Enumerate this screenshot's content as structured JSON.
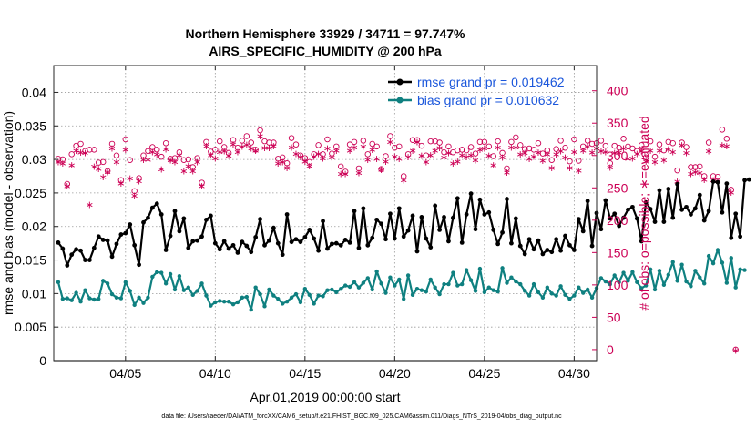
{
  "chart_data": {
    "type": "line",
    "title": "Northern Hemisphere 33929 / 34711 = 97.747%",
    "subtitle": "AIRS_SPECIFIC_HUMIDITY @ 200 hPa",
    "xlabel": "Apr.01,2019 00:00:00 start",
    "ylabel_left": "rmse and bias (model - observation)",
    "ylabel_right": "# of obs: o=possible; ∗=evaluated",
    "footnote": "data file: /Users/raeder/DAI/ATM_forcXX/CAM6_setup/f.e21.FHIST_BGC.f09_025.CAM6assim.011/Diags_NTrS_2019-04/obs_diag_output.nc",
    "xlim": [
      1.0,
      31.25
    ],
    "ylim_left": [
      0,
      0.044
    ],
    "ylim_right": [
      -17,
      439
    ],
    "x_ticks": [
      5,
      10,
      15,
      20,
      25,
      30
    ],
    "x_tick_labels": [
      "04/05",
      "04/10",
      "04/15",
      "04/20",
      "04/25",
      "04/30"
    ],
    "y_left_ticks": [
      0,
      0.005,
      0.01,
      0.015,
      0.02,
      0.025,
      0.03,
      0.035,
      0.04
    ],
    "y_left_tick_labels": [
      "0",
      "0.005",
      "0.01",
      "0.015",
      "0.02",
      "0.025",
      "0.03",
      "0.035",
      "0.04"
    ],
    "y_right_ticks": [
      0,
      50,
      100,
      150,
      200,
      250,
      300,
      350,
      400
    ],
    "y_right_tick_labels": [
      "0",
      "50",
      "100",
      "150",
      "200",
      "250",
      "300",
      "350",
      "400"
    ],
    "legend": [
      "rmse grand pr = 0.019462",
      "bias grand pr = 0.010632"
    ],
    "x_start": 1.25,
    "x_step": 0.25,
    "series": [
      {
        "name": "rmse",
        "color": "#000000",
        "axis": "left",
        "values": [
          0.0176,
          0.0167,
          0.0142,
          0.0158,
          0.0166,
          0.0164,
          0.015,
          0.015,
          0.0168,
          0.0185,
          0.018,
          0.0179,
          0.0155,
          0.0174,
          0.0188,
          0.019,
          0.0203,
          0.0172,
          0.0143,
          0.0206,
          0.0213,
          0.0228,
          0.0234,
          0.0218,
          0.0165,
          0.0186,
          0.0223,
          0.0193,
          0.0212,
          0.0168,
          0.0178,
          0.0179,
          0.0185,
          0.021,
          0.0216,
          0.0175,
          0.0166,
          0.0178,
          0.0167,
          0.0172,
          0.0161,
          0.0177,
          0.0171,
          0.0162,
          0.0184,
          0.0211,
          0.0172,
          0.0179,
          0.0198,
          0.0175,
          0.0158,
          0.0218,
          0.0177,
          0.0181,
          0.0177,
          0.0184,
          0.0195,
          0.0182,
          0.0164,
          0.0208,
          0.0167,
          0.0174,
          0.0175,
          0.0172,
          0.018,
          0.0176,
          0.0223,
          0.0168,
          0.0227,
          0.0172,
          0.0183,
          0.021,
          0.0204,
          0.0181,
          0.0219,
          0.0182,
          0.0227,
          0.0185,
          0.0194,
          0.0216,
          0.0163,
          0.0214,
          0.0182,
          0.0169,
          0.0231,
          0.0195,
          0.0214,
          0.0178,
          0.0213,
          0.0242,
          0.0176,
          0.0218,
          0.0249,
          0.0196,
          0.024,
          0.0218,
          0.0221,
          0.0195,
          0.0174,
          0.0191,
          0.0241,
          0.0175,
          0.0212,
          0.0171,
          0.0159,
          0.0181,
          0.0166,
          0.0179,
          0.0159,
          0.0165,
          0.0162,
          0.0181,
          0.0164,
          0.0186,
          0.0172,
          0.0165,
          0.0211,
          0.0193,
          0.0238,
          0.0171,
          0.022,
          0.0196,
          0.0239,
          0.0212,
          0.0219,
          0.0201,
          0.0213,
          0.0225,
          0.0229,
          0.0212,
          0.0178,
          0.0236,
          0.0226,
          0.0207,
          0.0254,
          0.0207,
          0.0256,
          0.0213,
          0.0263,
          0.0225,
          0.0229,
          0.0218,
          0.0227,
          0.0247,
          0.0209,
          0.0223,
          0.0267,
          0.0266,
          0.0221,
          0.0264,
          0.0183,
          0.0219,
          0.0185,
          0.0269,
          0.027
        ]
      },
      {
        "name": "bias",
        "color": "#0f8080",
        "axis": "left",
        "values": [
          0.0117,
          0.0092,
          0.0093,
          0.009,
          0.0101,
          0.0088,
          0.0105,
          0.0093,
          0.0091,
          0.0092,
          0.0119,
          0.0115,
          0.0099,
          0.0094,
          0.0093,
          0.0117,
          0.0104,
          0.0083,
          0.0094,
          0.0086,
          0.0094,
          0.0125,
          0.0132,
          0.0131,
          0.0115,
          0.0129,
          0.0106,
          0.0126,
          0.0105,
          0.0109,
          0.0098,
          0.0104,
          0.0115,
          0.0097,
          0.0082,
          0.0087,
          0.0089,
          0.0088,
          0.0088,
          0.0084,
          0.0087,
          0.0094,
          0.0095,
          0.0076,
          0.0109,
          0.0099,
          0.0081,
          0.0106,
          0.0097,
          0.0092,
          0.0085,
          0.0088,
          0.0094,
          0.0099,
          0.0087,
          0.0107,
          0.0098,
          0.0085,
          0.0097,
          0.0096,
          0.0105,
          0.0106,
          0.0102,
          0.0107,
          0.0112,
          0.011,
          0.0117,
          0.0109,
          0.0116,
          0.0123,
          0.0106,
          0.0133,
          0.0115,
          0.0101,
          0.0124,
          0.0112,
          0.0121,
          0.0092,
          0.0127,
          0.0098,
          0.0107,
          0.0105,
          0.0103,
          0.0121,
          0.0109,
          0.0099,
          0.0114,
          0.0114,
          0.0131,
          0.0112,
          0.0114,
          0.0135,
          0.012,
          0.0104,
          0.0137,
          0.0102,
          0.0109,
          0.0105,
          0.0103,
          0.0138,
          0.0116,
          0.0124,
          0.0118,
          0.0114,
          0.0104,
          0.0097,
          0.0114,
          0.0102,
          0.0094,
          0.0109,
          0.01,
          0.0097,
          0.0111,
          0.0098,
          0.0092,
          0.0097,
          0.0109,
          0.0101,
          0.0106,
          0.0094,
          0.0108,
          0.0123,
          0.0118,
          0.0114,
          0.0127,
          0.0117,
          0.0131,
          0.0119,
          0.0132,
          0.0117,
          0.0108,
          0.0112,
          0.0136,
          0.0106,
          0.0134,
          0.0113,
          0.0128,
          0.0147,
          0.0119,
          0.0143,
          0.0118,
          0.0111,
          0.0134,
          0.0124,
          0.0115,
          0.0156,
          0.0145,
          0.0165,
          0.0146,
          0.0116,
          0.0153,
          0.0109,
          0.0136,
          0.0135
        ]
      },
      {
        "name": "possible",
        "color": "#cc0055",
        "axis": "right",
        "marker": "o",
        "values": [
          295,
          294,
          256,
          302,
          315,
          318,
          307,
          309,
          309,
          289,
          290,
          276,
          318,
          300,
          262,
          325,
          293,
          245,
          265,
          300,
          307,
          313,
          309,
          298,
          319,
          295,
          296,
          305,
          293,
          294,
          282,
          296,
          258,
          321,
          306,
          309,
          322,
          313,
          304,
          324,
          312,
          323,
          330,
          320,
          309,
          339,
          322,
          320,
          320,
          295,
          297,
          288,
          327,
          317,
          300,
          296,
          290,
          302,
          316,
          302,
          325,
          303,
          314,
          283,
          275,
          317,
          321,
          280,
          323,
          302,
          318,
          314,
          279,
          299,
          330,
          312,
          314,
          268,
          302,
          324,
          324,
          315,
          300,
          322,
          322,
          320,
          305,
          314,
          305,
          308,
          309,
          308,
          313,
          303,
          321,
          321,
          314,
          299,
          322,
          304,
          280,
          321,
          328,
          316,
          310,
          311,
          309,
          319,
          303,
          308,
          293,
          310,
          323,
          312,
          291,
          325,
          292,
          314,
          323,
          318,
          319,
          323,
          315,
          288,
          315,
          312,
          326,
          314,
          311,
          307,
          316,
          297,
          322,
          298,
          317,
          308,
          321,
          319,
          277,
          320,
          313,
          282,
          282,
          283,
          268,
          320,
          268,
          267,
          340,
          326,
          247,
          0
        ]
      },
      {
        "name": "evaluated",
        "color": "#cc0055",
        "axis": "right",
        "marker": "*",
        "values": [
          291,
          289,
          254,
          286,
          309,
          306,
          305,
          225,
          284,
          281,
          268,
          276,
          312,
          291,
          258,
          310,
          266,
          239,
          262,
          295,
          295,
          307,
          303,
          280,
          311,
          294,
          291,
          302,
          277,
          285,
          277,
          291,
          254,
          316,
          302,
          297,
          307,
          308,
          301,
          319,
          307,
          315,
          318,
          312,
          309,
          331,
          313,
          313,
          316,
          289,
          291,
          282,
          314,
          304,
          299,
          292,
          285,
          300,
          304,
          297,
          312,
          298,
          309,
          273,
          273,
          309,
          314,
          274,
          315,
          295,
          310,
          296,
          279,
          292,
          322,
          300,
          296,
          263,
          299,
          309,
          322,
          301,
          291,
          302,
          309,
          313,
          298,
          305,
          289,
          292,
          302,
          299,
          302,
          294,
          310,
          312,
          301,
          286,
          314,
          298,
          275,
          314,
          314,
          303,
          305,
          296,
          300,
          306,
          293,
          303,
          282,
          303,
          308,
          298,
          282,
          307,
          278,
          309,
          315,
          306,
          312,
          308,
          307,
          283,
          305,
          306,
          312,
          296,
          297,
          304,
          308,
          292,
          309,
          291,
          309,
          294,
          311,
          307,
          261,
          317,
          305,
          273,
          276,
          274,
          264,
          308,
          263,
          262,
          317,
          316,
          244,
          0
        ]
      }
    ]
  }
}
